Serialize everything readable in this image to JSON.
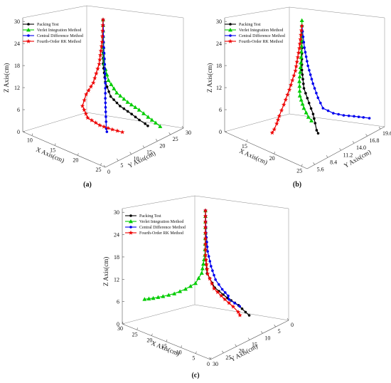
{
  "colors": {
    "packing": "#000000",
    "verlet": "#00cc00",
    "central": "#0000ee",
    "rk": "#ee0000"
  },
  "legend": [
    {
      "key": "packing",
      "label": "Packing Test",
      "marker": "circle"
    },
    {
      "key": "verlet",
      "label": "Verlet Integration Method",
      "marker": "triangle"
    },
    {
      "key": "central",
      "label": "Central Difference Method",
      "marker": "circle"
    },
    {
      "key": "rk",
      "label": "Fourth-Order RK Method",
      "marker": "star"
    }
  ],
  "chart_data": [
    {
      "type": "line3d",
      "caption": "(a)",
      "xlabel": "X Axis(cm)",
      "ylabel": "Y Axis(cm)",
      "zlabel": "Z Axis(cm)",
      "xticks": [
        "10",
        "15",
        "20",
        "25"
      ],
      "yticks": [
        "0",
        "5",
        "10",
        "15",
        "20",
        "25",
        "30"
      ],
      "zticks": [
        "0",
        "6",
        "12",
        "18",
        "24",
        "30"
      ],
      "series": [
        {
          "key": "packing",
          "points": [
            [
              17.0,
              15.0,
              30.0
            ],
            [
              17.0,
              15.0,
              24.0
            ],
            [
              17.0,
              15.0,
              18.0
            ],
            [
              17.2,
              15.5,
              13.0
            ],
            [
              17.8,
              16.5,
              9.0
            ],
            [
              19.0,
              18.0,
              6.5
            ],
            [
              20.5,
              19.8,
              4.5
            ],
            [
              21.5,
              21.0,
              3.0
            ],
            [
              22.2,
              22.0,
              2.0
            ],
            [
              22.5,
              22.5,
              1.4
            ]
          ]
        },
        {
          "key": "verlet",
          "points": [
            [
              17.0,
              15.0,
              30.0
            ],
            [
              17.0,
              15.0,
              24.0
            ],
            [
              17.1,
              15.2,
              18.0
            ],
            [
              17.6,
              16.0,
              13.5
            ],
            [
              18.5,
              17.6,
              10.0
            ],
            [
              19.8,
              19.5,
              7.5
            ],
            [
              21.0,
              21.8,
              5.2
            ],
            [
              22.0,
              23.5,
              3.2
            ],
            [
              22.8,
              25.0,
              1.5
            ],
            [
              23.2,
              26.0,
              0.4
            ]
          ]
        },
        {
          "key": "central",
          "points": [
            [
              17.0,
              15.0,
              30.0
            ],
            [
              17.1,
              15.0,
              24.0
            ],
            [
              17.3,
              15.1,
              18.0
            ],
            [
              17.5,
              15.0,
              13.0
            ],
            [
              17.6,
              14.8,
              9.0
            ],
            [
              17.8,
              14.6,
              5.5
            ],
            [
              18.0,
              14.4,
              3.0
            ],
            [
              18.1,
              14.3,
              1.2
            ],
            [
              18.4,
              14.0,
              0.6
            ]
          ]
        },
        {
          "key": "rk",
          "points": [
            [
              17.0,
              15.0,
              30.0
            ],
            [
              16.9,
              14.8,
              24.0
            ],
            [
              16.6,
              14.2,
              18.0
            ],
            [
              16.0,
              13.0,
              13.0
            ],
            [
              15.3,
              11.5,
              10.0
            ],
            [
              15.0,
              10.6,
              7.0
            ],
            [
              15.8,
              11.2,
              4.0
            ],
            [
              17.4,
              13.0,
              2.2
            ],
            [
              19.0,
              15.0,
              1.2
            ],
            [
              20.3,
              16.6,
              0.6
            ]
          ]
        }
      ]
    },
    {
      "type": "line3d",
      "caption": "(b)",
      "xlabel": "X Axis(cm)",
      "ylabel": "Y Axis(cm)",
      "zlabel": "Z Axis(cm)",
      "xticks": [
        "15",
        "20",
        "25"
      ],
      "yticks": [
        "5.6",
        "8.4",
        "11.2",
        "14.0",
        "16.8",
        "19.6"
      ],
      "zticks": [
        "0",
        "6",
        "12",
        "18",
        "24",
        "30"
      ],
      "series": [
        {
          "key": "packing",
          "points": [
            [
              19.5,
              10.5,
              30.0
            ],
            [
              19.5,
              10.5,
              24.0
            ],
            [
              19.5,
              10.5,
              18.0
            ],
            [
              19.7,
              10.7,
              13.0
            ],
            [
              20.2,
              11.2,
              9.0
            ],
            [
              20.6,
              11.6,
              6.0
            ],
            [
              20.8,
              11.8,
              3.5
            ],
            [
              20.9,
              12.0,
              1.5
            ],
            [
              21.0,
              12.2,
              0.6
            ]
          ]
        },
        {
          "key": "verlet",
          "points": [
            [
              19.5,
              10.5,
              31.5
            ],
            [
              19.5,
              10.5,
              26.0
            ],
            [
              19.4,
              10.4,
              20.0
            ],
            [
              19.3,
              10.2,
              15.0
            ],
            [
              19.3,
              10.3,
              11.0
            ],
            [
              19.6,
              10.8,
              7.5
            ],
            [
              20.0,
              11.3,
              5.0
            ],
            [
              20.3,
              11.6,
              4.0
            ]
          ]
        },
        {
          "key": "central",
          "points": [
            [
              19.5,
              10.5,
              30.0
            ],
            [
              19.7,
              10.8,
              24.0
            ],
            [
              20.0,
              11.2,
              19.0
            ],
            [
              20.4,
              11.8,
              14.0
            ],
            [
              20.8,
              12.4,
              10.0
            ],
            [
              21.2,
              13.0,
              7.0
            ],
            [
              21.8,
              14.5,
              5.0
            ],
            [
              22.4,
              16.0,
              3.8
            ],
            [
              23.0,
              17.5,
              2.9
            ],
            [
              23.6,
              18.8,
              2.1
            ],
            [
              24.0,
              19.6,
              1.6
            ]
          ]
        },
        {
          "key": "rk",
          "points": [
            [
              19.5,
              10.5,
              30.0
            ],
            [
              19.3,
              10.2,
              24.0
            ],
            [
              19.0,
              9.7,
              18.0
            ],
            [
              18.5,
              9.0,
              13.0
            ],
            [
              18.0,
              8.4,
              9.0
            ],
            [
              17.6,
              7.9,
              6.0
            ],
            [
              17.4,
              7.6,
              4.0
            ],
            [
              17.2,
              7.3,
              2.5
            ],
            [
              17.0,
              7.1,
              1.6
            ]
          ]
        }
      ]
    },
    {
      "type": "line3d",
      "caption": "(c)",
      "xlabel": "X Axis(cm)",
      "ylabel": "Y Axis(cm)",
      "zlabel": "Z Axis(cm)",
      "xticks": [
        "30",
        "25",
        "20",
        "15",
        "10",
        "5",
        "0"
      ],
      "yticks": [
        "30",
        "25",
        "20",
        "15",
        "10",
        "5",
        "0"
      ],
      "zticks": [
        "0",
        "6",
        "12",
        "18",
        "24",
        "30"
      ],
      "series": [
        {
          "key": "packing",
          "points": [
            [
              15.0,
              15.0,
              30.0
            ],
            [
              15.0,
              15.0,
              24.0
            ],
            [
              15.0,
              15.0,
              18.0
            ],
            [
              14.8,
              14.6,
              13.0
            ],
            [
              13.6,
              13.0,
              9.0
            ],
            [
              11.5,
              10.5,
              6.0
            ],
            [
              9.5,
              8.5,
              4.0
            ],
            [
              8.0,
              7.5,
              2.3
            ],
            [
              7.2,
              7.0,
              1.5
            ]
          ]
        },
        {
          "key": "verlet",
          "points": [
            [
              15.0,
              15.0,
              30.0
            ],
            [
              15.0,
              15.0,
              24.0
            ],
            [
              15.2,
              15.0,
              18.0
            ],
            [
              16.0,
              15.3,
              13.0
            ],
            [
              17.5,
              16.0,
              10.0
            ],
            [
              20.0,
              17.0,
              8.0
            ],
            [
              22.5,
              18.5,
              6.5
            ],
            [
              25.0,
              20.0,
              5.5
            ],
            [
              27.0,
              21.5,
              4.9
            ],
            [
              28.8,
              22.8,
              4.5
            ]
          ]
        },
        {
          "key": "central",
          "points": [
            [
              15.0,
              15.0,
              30.0
            ],
            [
              14.9,
              14.9,
              24.0
            ],
            [
              14.6,
              14.6,
              19.0
            ],
            [
              14.0,
              14.0,
              15.0
            ],
            [
              13.0,
              13.4,
              11.5
            ],
            [
              11.6,
              12.4,
              9.0
            ],
            [
              10.8,
              11.0,
              7.0
            ],
            [
              11.4,
              10.0,
              5.5
            ],
            [
              10.2,
              9.2,
              4.6
            ],
            [
              9.0,
              8.6,
              3.9
            ]
          ]
        },
        {
          "key": "rk",
          "points": [
            [
              15.0,
              15.0,
              30.0
            ],
            [
              15.0,
              15.0,
              24.0
            ],
            [
              15.0,
              15.0,
              18.0
            ],
            [
              14.6,
              14.6,
              13.0
            ],
            [
              13.4,
              13.5,
              9.0
            ],
            [
              11.5,
              11.5,
              6.0
            ],
            [
              10.0,
              10.0,
              4.0
            ],
            [
              9.0,
              9.2,
              2.6
            ],
            [
              8.6,
              9.0,
              1.8
            ]
          ]
        }
      ]
    }
  ]
}
